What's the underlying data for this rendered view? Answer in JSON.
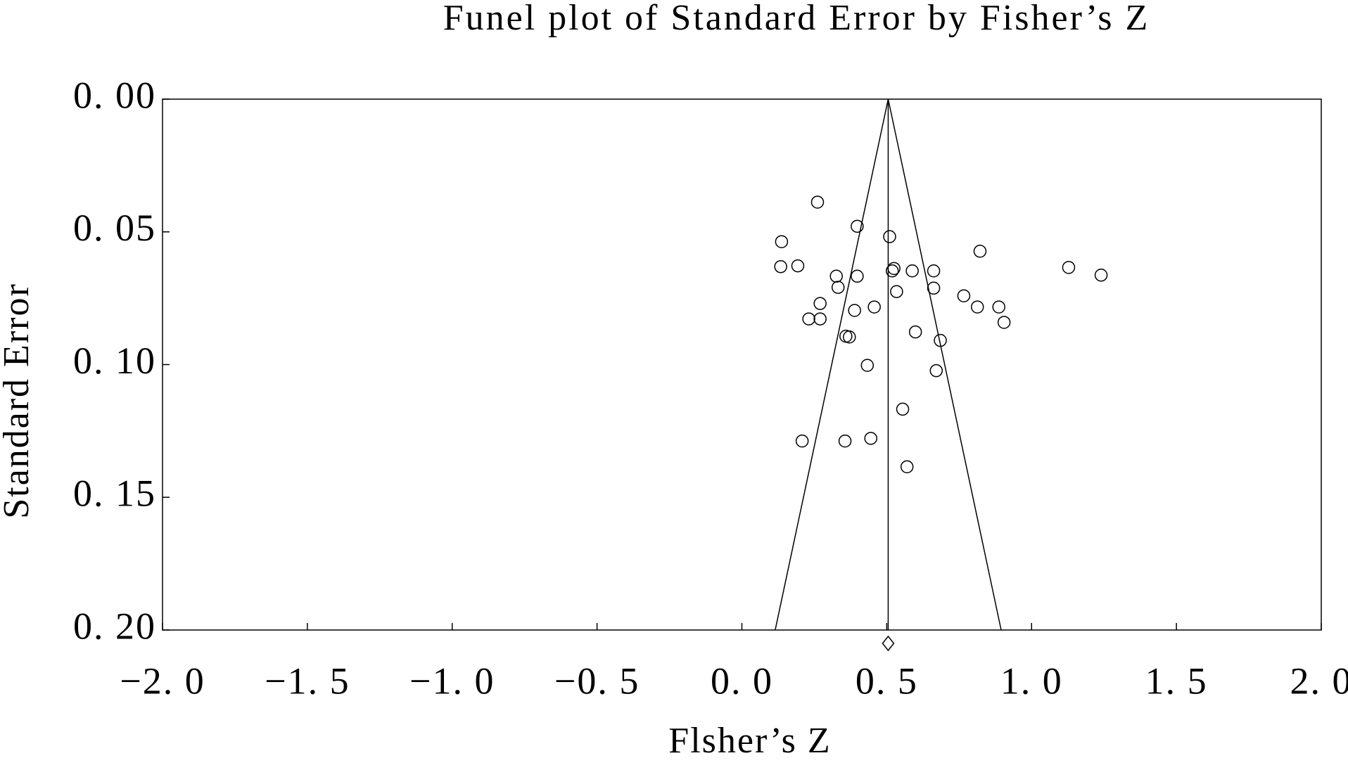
{
  "chart_data": {
    "type": "funnel",
    "title": "Funel plot of Standard Error by Fisher’s Z",
    "x_label": "Flsher’s Z",
    "y_label": "Standard Error",
    "color": "#000000",
    "xlim": [
      -2,
      2
    ],
    "ylim": [
      0,
      0.2
    ],
    "y_inverted": true,
    "xticks": [
      {
        "value": -2,
        "label": "−2. 0"
      },
      {
        "value": -1.5,
        "label": "−1. 5"
      },
      {
        "value": -1,
        "label": "−1. 0"
      },
      {
        "value": -0.5,
        "label": "−0. 5"
      },
      {
        "value": 0,
        "label": "0. 0"
      },
      {
        "value": 0.5,
        "label": "0. 5"
      },
      {
        "value": 1,
        "label": "1. 0"
      },
      {
        "value": 1.5,
        "label": "1. 5"
      },
      {
        "value": 2,
        "label": "2. 0"
      }
    ],
    "yticks": [
      {
        "value": 0,
        "label": "0. 00"
      },
      {
        "value": 0.05,
        "label": "0. 05"
      },
      {
        "value": 0.1,
        "label": "0. 10"
      },
      {
        "value": 0.15,
        "label": "0. 15"
      },
      {
        "value": 0.2,
        "label": "0. 20"
      }
    ],
    "summary_effect": 0.505,
    "funnel_bottom": [
      0.115,
      0.895
    ],
    "x": [
      0.261,
      0.398,
      0.51,
      0.137,
      0.822,
      0.134,
      0.193,
      0.525,
      0.519,
      0.588,
      0.662,
      1.128,
      1.24,
      0.326,
      0.398,
      0.332,
      0.662,
      0.534,
      0.766,
      0.27,
      0.457,
      0.813,
      0.887,
      0.389,
      0.231,
      0.27,
      0.905,
      0.599,
      0.359,
      0.371,
      0.685,
      0.433,
      0.671,
      0.555,
      0.208,
      0.356,
      0.445,
      0.57
    ],
    "values": [
      0.0388,
      0.0479,
      0.0518,
      0.0537,
      0.0573,
      0.0631,
      0.0628,
      0.0638,
      0.0647,
      0.0647,
      0.0647,
      0.0634,
      0.0663,
      0.0667,
      0.0667,
      0.0709,
      0.0712,
      0.0725,
      0.0741,
      0.077,
      0.0783,
      0.0783,
      0.0783,
      0.0796,
      0.0828,
      0.0828,
      0.0841,
      0.0877,
      0.0893,
      0.0896,
      0.0909,
      0.1003,
      0.1023,
      0.1168,
      0.1288,
      0.1288,
      0.1278,
      0.1385
    ]
  }
}
